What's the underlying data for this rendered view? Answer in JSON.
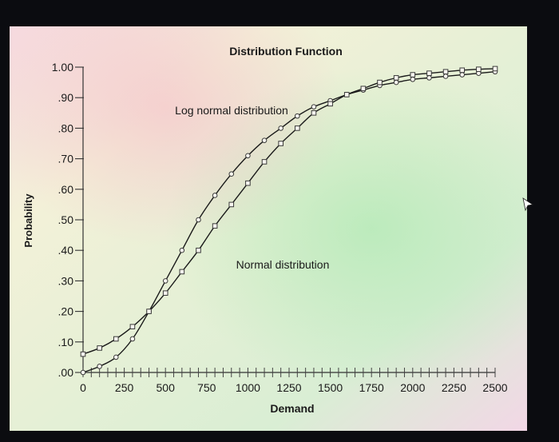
{
  "chart_data": {
    "type": "line",
    "title": "Distribution Function",
    "xlabel": "Demand",
    "ylabel": "Probability",
    "xlim": [
      0,
      2500
    ],
    "ylim": [
      0,
      1
    ],
    "x_ticks": [
      "0",
      "250",
      "500",
      "750",
      "1000",
      "1250",
      "1500",
      "1750",
      "2000",
      "2250",
      "2500"
    ],
    "y_ticks": [
      ".00",
      ".10",
      ".20",
      ".30",
      ".40",
      ".50",
      ".60",
      ".70",
      ".80",
      ".90",
      "1.00"
    ],
    "grid": false,
    "legend": "none",
    "annotations": [
      {
        "text": "Log normal distribution",
        "series": "Log normal distribution"
      },
      {
        "text": "Normal distribution",
        "series": "Normal distribution"
      }
    ],
    "series": [
      {
        "name": "Log normal distribution",
        "marker": "circle",
        "x": [
          0,
          100,
          200,
          300,
          400,
          500,
          600,
          700,
          800,
          900,
          1000,
          1100,
          1200,
          1300,
          1400,
          1500,
          1600,
          1700,
          1800,
          1900,
          2000,
          2100,
          2200,
          2300,
          2400,
          2500
        ],
        "values": [
          0.0,
          0.02,
          0.05,
          0.11,
          0.2,
          0.3,
          0.4,
          0.5,
          0.58,
          0.65,
          0.71,
          0.76,
          0.8,
          0.84,
          0.87,
          0.89,
          0.91,
          0.925,
          0.94,
          0.95,
          0.96,
          0.965,
          0.97,
          0.975,
          0.98,
          0.985
        ]
      },
      {
        "name": "Normal distribution",
        "marker": "square",
        "x": [
          0,
          100,
          200,
          300,
          400,
          500,
          600,
          700,
          800,
          900,
          1000,
          1100,
          1200,
          1300,
          1400,
          1500,
          1600,
          1700,
          1800,
          1900,
          2000,
          2100,
          2200,
          2300,
          2400,
          2500
        ],
        "values": [
          0.06,
          0.08,
          0.11,
          0.15,
          0.2,
          0.26,
          0.33,
          0.4,
          0.48,
          0.55,
          0.62,
          0.69,
          0.75,
          0.8,
          0.85,
          0.88,
          0.91,
          0.93,
          0.95,
          0.965,
          0.975,
          0.98,
          0.985,
          0.99,
          0.993,
          0.995
        ]
      }
    ],
    "colors": {
      "curve": "#1a1a1a",
      "circle_marker": "#3a3a3a",
      "square_marker": "#3a3a3a",
      "screen_frame": "#0b0c10"
    }
  }
}
